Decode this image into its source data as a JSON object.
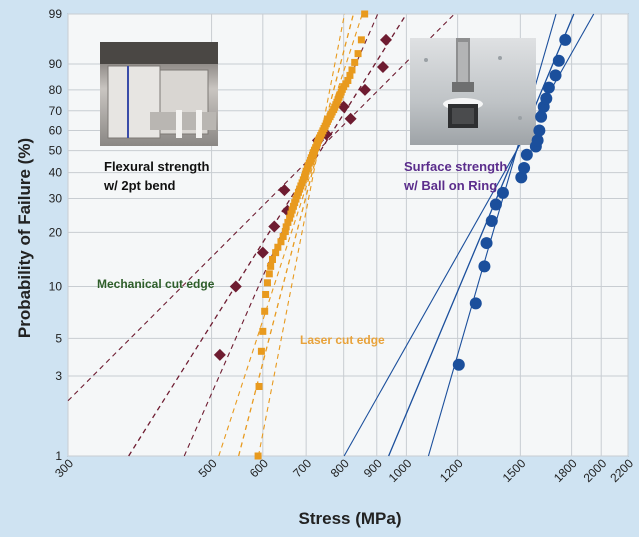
{
  "chart_data": {
    "type": "scatter",
    "title": "",
    "xlabel": "Stress (MPa)",
    "ylabel": "Probability of Failure (%)",
    "x_scale": "log",
    "y_scale": "weibull",
    "xlim": [
      300,
      2200
    ],
    "ylim": [
      1,
      99
    ],
    "grid": true,
    "x_ticks": [
      300,
      500,
      600,
      700,
      800,
      900,
      1000,
      1200,
      1500,
      1800,
      2000,
      2200
    ],
    "y_ticks": [
      1,
      3,
      5,
      10,
      20,
      30,
      40,
      50,
      60,
      70,
      80,
      90,
      99
    ],
    "series": [
      {
        "name": "Mechanical cut edge",
        "marker": "diamond",
        "color": "#6e1c31",
        "points": [
          [
            515,
            4
          ],
          [
            545,
            10
          ],
          [
            600,
            15.5
          ],
          [
            625,
            21.5
          ],
          [
            648,
            33
          ],
          [
            655,
            26
          ],
          [
            730,
            55
          ],
          [
            752,
            58
          ],
          [
            800,
            72
          ],
          [
            820,
            66
          ],
          [
            863,
            80
          ],
          [
            920,
            89
          ],
          [
            930,
            96
          ]
        ],
        "fit": {
          "center": [
            730,
            48
          ],
          "slope": 6.2,
          "band": [
            [
              730,
              3.9,
              0.65
            ],
            [
              730,
              8.9,
              0.65
            ]
          ]
        }
      },
      {
        "name": "Laser cut edge",
        "marker": "square",
        "color": "#e89a1e",
        "points": [
          [
            590,
            1
          ],
          [
            592,
            2.6
          ],
          [
            597,
            4.2
          ],
          [
            600,
            5.5
          ],
          [
            604,
            7.2
          ],
          [
            606,
            9
          ],
          [
            610,
            10.5
          ],
          [
            614,
            11.8
          ],
          [
            617,
            13
          ],
          [
            621,
            14.2
          ],
          [
            628,
            15.5
          ],
          [
            633,
            16.6
          ],
          [
            640,
            17.8
          ],
          [
            645,
            19
          ],
          [
            650,
            20.2
          ],
          [
            652,
            21.4
          ],
          [
            656,
            22.6
          ],
          [
            660,
            23.8
          ],
          [
            663,
            25
          ],
          [
            666,
            26.2
          ],
          [
            669,
            27.4
          ],
          [
            672,
            28.6
          ],
          [
            675,
            29.8
          ],
          [
            678,
            31
          ],
          [
            681,
            32.2
          ],
          [
            684,
            33.4
          ],
          [
            687,
            34.6
          ],
          [
            690,
            35.8
          ],
          [
            693,
            37
          ],
          [
            696,
            38.2
          ],
          [
            698,
            39.4
          ],
          [
            700,
            40.6
          ],
          [
            703,
            41.8
          ],
          [
            705,
            43
          ],
          [
            708,
            44.2
          ],
          [
            711,
            45.4
          ],
          [
            713,
            46.6
          ],
          [
            716,
            47.8
          ],
          [
            718,
            49
          ],
          [
            721,
            50.2
          ],
          [
            724,
            51.4
          ],
          [
            727,
            52.6
          ],
          [
            729,
            53.8
          ],
          [
            731,
            55
          ],
          [
            734,
            56.2
          ],
          [
            737,
            57.4
          ],
          [
            740,
            58.6
          ],
          [
            743,
            59.8
          ],
          [
            746,
            61
          ],
          [
            749,
            62.2
          ],
          [
            752,
            63.4
          ],
          [
            755,
            64.6
          ],
          [
            758,
            65.8
          ],
          [
            762,
            67
          ],
          [
            765,
            68.2
          ],
          [
            768,
            69.4
          ],
          [
            772,
            70.6
          ],
          [
            775,
            71.8
          ],
          [
            778,
            73
          ],
          [
            781,
            74.2
          ],
          [
            784,
            75.4
          ],
          [
            787,
            76.6
          ],
          [
            790,
            77.8
          ],
          [
            793,
            79
          ],
          [
            796,
            80.2
          ],
          [
            800,
            81.4
          ],
          [
            806,
            82.6
          ],
          [
            812,
            84
          ],
          [
            818,
            86
          ],
          [
            824,
            88
          ],
          [
            832,
            90.5
          ],
          [
            842,
            93
          ],
          [
            852,
            96
          ],
          [
            862,
            99
          ]
        ],
        "fit": {
          "center": [
            730,
            50
          ],
          "slope": 15,
          "band": [
            [
              730,
              12,
              0.75
            ],
            [
              730,
              20,
              0.75
            ]
          ]
        }
      },
      {
        "name": "Ball on Ring",
        "marker": "circle",
        "color": "#1b4f9c",
        "points": [
          [
            1205,
            3.5
          ],
          [
            1280,
            8
          ],
          [
            1320,
            13
          ],
          [
            1330,
            17.5
          ],
          [
            1355,
            23
          ],
          [
            1375,
            28
          ],
          [
            1410,
            32
          ],
          [
            1505,
            38
          ],
          [
            1520,
            42
          ],
          [
            1535,
            48
          ],
          [
            1585,
            52
          ],
          [
            1595,
            55
          ],
          [
            1605,
            60
          ],
          [
            1615,
            67
          ],
          [
            1630,
            72
          ],
          [
            1645,
            76
          ],
          [
            1660,
            81
          ],
          [
            1700,
            86
          ],
          [
            1720,
            91
          ],
          [
            1760,
            96
          ]
        ],
        "fit": {
          "center": [
            1480,
            50
          ],
          "slope": 9.3,
          "band": [
            [
              1480,
              6.9,
              0.7
            ],
            [
              1480,
              13.5,
              0.7
            ]
          ]
        }
      }
    ]
  },
  "annotations": {
    "flexural_line1": "Flexural strength",
    "flexural_line2": "w/ 2pt bend",
    "surface_line1": "Surface strength",
    "surface_line2": "w/ Ball on Ring",
    "mechanical_label": "Mechanical cut edge",
    "laser_label": "Laser cut edge"
  },
  "colors": {
    "background": "#cfe3f2",
    "plot_background": "#f5f7f8",
    "grid": "#c8cdd2",
    "mechanical_label": "#2e5e2a",
    "laser_label": "#e8a23a",
    "surface_label": "#5b2d8c",
    "flexural_label": "#111111"
  },
  "images": {
    "bend_fixture_photo": "bend-fixture-photo",
    "ball_on_ring_photo": "ball-on-ring-photo"
  }
}
